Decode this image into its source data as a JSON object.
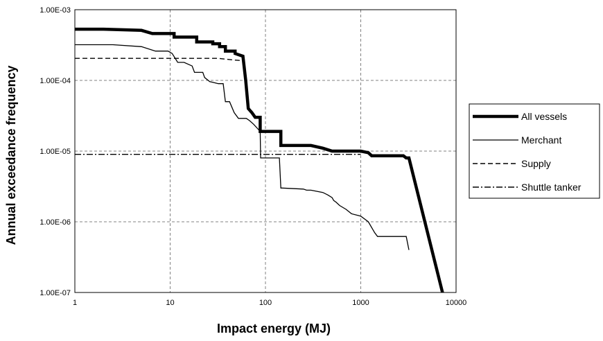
{
  "chart_data": {
    "type": "line",
    "xlabel": "Impact energy (MJ)",
    "ylabel": "Annual exceedance frequency",
    "x_scale": "log",
    "y_scale": "log",
    "xlim": [
      1,
      10000
    ],
    "ylim": [
      1e-07,
      0.001
    ],
    "grid": true,
    "legend_position": "right",
    "x_tick_labels": [
      "1",
      "10",
      "100",
      "1000",
      "10000"
    ],
    "y_tick_labels": [
      "1.00E-03",
      "1.00E-04",
      "1.00E-05",
      "1.00E-06",
      "1.00E-07"
    ],
    "series": [
      {
        "name": "All vessels",
        "style": "thick",
        "x": [
          1,
          2,
          5,
          6.5,
          6.5,
          11,
          11,
          13,
          13,
          19,
          19,
          28,
          28,
          33,
          33,
          38,
          38,
          44,
          44,
          48,
          48,
          58,
          62,
          66,
          72,
          78,
          88,
          88,
          145,
          145,
          300,
          400,
          500,
          1000,
          1200,
          1300,
          2500,
          2800,
          3000,
          3200,
          7200
        ],
        "y": [
          0.00053,
          0.00053,
          0.00051,
          0.00046,
          0.00046,
          0.00046,
          0.00041,
          0.00041,
          0.00041,
          0.00041,
          0.00035,
          0.00035,
          0.00033,
          0.00033,
          0.0003,
          0.0003,
          0.00026,
          0.00026,
          0.00026,
          0.00026,
          0.00024,
          0.00022,
          0.0001,
          4e-05,
          3.5e-05,
          3e-05,
          3e-05,
          1.9e-05,
          1.9e-05,
          1.2e-05,
          1.2e-05,
          1.1e-05,
          1e-05,
          1e-05,
          9.5e-06,
          8.6e-06,
          8.6e-06,
          8.6e-06,
          8e-06,
          8e-06,
          1e-07
        ]
      },
      {
        "name": "Merchant",
        "style": "thin",
        "x": [
          1,
          2.5,
          5,
          7,
          9.5,
          10.5,
          12,
          14,
          17,
          18,
          22,
          23,
          26,
          28,
          32,
          36,
          38,
          42,
          47,
          52,
          63,
          68,
          75,
          88,
          89,
          90,
          140,
          145,
          150,
          250,
          270,
          300,
          400,
          450,
          500,
          520,
          550,
          600,
          700,
          800,
          1000,
          1200,
          1400,
          1500,
          2000,
          3000,
          3200
        ],
        "y": [
          0.00032,
          0.00032,
          0.0003,
          0.00026,
          0.00026,
          0.00024,
          0.00018,
          0.00018,
          0.00016,
          0.00013,
          0.00013,
          0.00011,
          9.6e-05,
          9.4e-05,
          9e-05,
          9e-05,
          5e-05,
          5e-05,
          3.5e-05,
          2.9e-05,
          2.9e-05,
          2.7e-05,
          2.4e-05,
          1.9e-05,
          8e-06,
          8e-06,
          8e-06,
          3e-06,
          3e-06,
          2.9e-06,
          2.8e-06,
          2.8e-06,
          2.6e-06,
          2.4e-06,
          2.2e-06,
          2e-06,
          1.9e-06,
          1.7e-06,
          1.5e-06,
          1.3e-06,
          1.2e-06,
          1e-06,
          7e-07,
          6.2e-07,
          6.2e-07,
          6.2e-07,
          4e-07
        ]
      },
      {
        "name": "Supply",
        "style": "dashed",
        "x": [
          1,
          20,
          32,
          45,
          60
        ],
        "y": [
          0.000205,
          0.000205,
          0.000205,
          0.000195,
          0.00019
        ]
      },
      {
        "name": "Shuttle tanker",
        "style": "dashdot",
        "x": [
          1,
          1000
        ],
        "y": [
          9e-06,
          9e-06
        ]
      }
    ]
  }
}
